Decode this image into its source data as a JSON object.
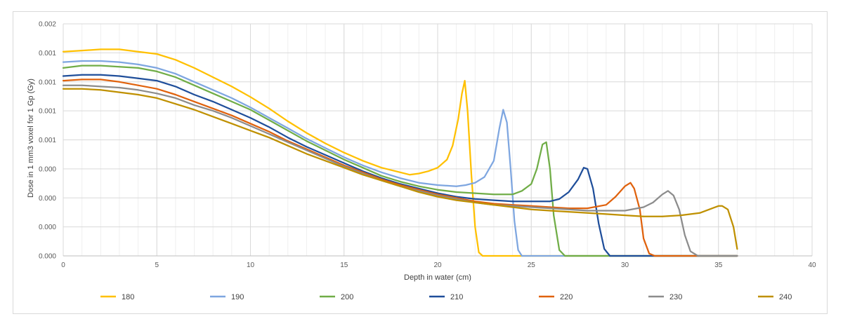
{
  "chart_data": {
    "type": "line",
    "title": "",
    "xlabel": "Depth in water (cm)",
    "ylabel": "Dose in 1 mm3 voxel for 1 Gp (Gy)",
    "xlim": [
      0,
      40
    ],
    "ylim": [
      0,
      0.002
    ],
    "x_ticks": [
      0,
      5,
      10,
      15,
      20,
      25,
      30,
      35,
      40
    ],
    "x_tick_labels": [
      "0",
      "5",
      "10",
      "15",
      "20",
      "25",
      "30",
      "35",
      "40"
    ],
    "y_ticks": [
      0,
      0.00025,
      0.0005,
      0.00075,
      0.001,
      0.00125,
      0.0015,
      0.00175,
      0.002
    ],
    "y_tick_labels": [
      "0.000",
      "0.000",
      "0.000",
      "0.000",
      "0.001",
      "0.001",
      "0.001",
      "0.001",
      "0.002"
    ],
    "grid": true,
    "legend_position": "bottom",
    "series": [
      {
        "name": "180",
        "color": "#FFC000",
        "x": [
          0,
          1,
          2,
          3,
          4,
          5,
          6,
          7,
          8,
          9,
          10,
          11,
          12,
          13,
          14,
          15,
          16,
          17,
          18,
          18.5,
          19,
          19.5,
          20,
          20.5,
          20.8,
          21.1,
          21.3,
          21.45,
          21.6,
          21.8,
          22.0,
          22.2,
          22.4,
          23,
          36
        ],
        "y": [
          0.00176,
          0.00177,
          0.00178,
          0.00178,
          0.00176,
          0.00174,
          0.00169,
          0.00162,
          0.00154,
          0.00146,
          0.00137,
          0.00127,
          0.00116,
          0.00106,
          0.00097,
          0.00089,
          0.00082,
          0.00076,
          0.00072,
          0.0007,
          0.00071,
          0.00073,
          0.00076,
          0.00083,
          0.00095,
          0.00118,
          0.0014,
          0.00151,
          0.00125,
          0.0007,
          0.00025,
          3e-05,
          0,
          0,
          0
        ]
      },
      {
        "name": "190",
        "color": "#7EA6E0",
        "x": [
          0,
          1,
          2,
          3,
          4,
          5,
          6,
          7,
          8,
          9,
          10,
          11,
          12,
          13,
          14,
          15,
          16,
          17,
          18,
          19,
          20,
          21,
          21.5,
          22,
          22.5,
          23,
          23.3,
          23.5,
          23.7,
          23.9,
          24.1,
          24.3,
          24.5,
          25,
          36
        ],
        "y": [
          0.00167,
          0.00168,
          0.00168,
          0.00167,
          0.00165,
          0.00162,
          0.00157,
          0.0015,
          0.00143,
          0.00136,
          0.00128,
          0.00119,
          0.0011,
          0.00101,
          0.00093,
          0.00085,
          0.00078,
          0.00072,
          0.00067,
          0.00063,
          0.00061,
          0.0006,
          0.00061,
          0.00063,
          0.00068,
          0.00082,
          0.0011,
          0.00126,
          0.00115,
          0.00075,
          0.0003,
          5e-05,
          0,
          0,
          0
        ]
      },
      {
        "name": "200",
        "color": "#70AD47",
        "x": [
          0,
          1,
          2,
          3,
          4,
          5,
          6,
          7,
          8,
          9,
          10,
          11,
          12,
          13,
          14,
          15,
          16,
          17,
          18,
          19,
          20,
          21,
          22,
          23,
          24,
          24.5,
          25,
          25.3,
          25.6,
          25.8,
          26.0,
          26.2,
          26.5,
          26.8,
          27,
          36
        ],
        "y": [
          0.00162,
          0.00164,
          0.00164,
          0.00163,
          0.00162,
          0.00159,
          0.00154,
          0.00147,
          0.0014,
          0.00133,
          0.00126,
          0.00117,
          0.00108,
          0.00099,
          0.00091,
          0.00083,
          0.00076,
          0.00069,
          0.00064,
          0.0006,
          0.00057,
          0.00055,
          0.00054,
          0.00053,
          0.00053,
          0.00056,
          0.00062,
          0.00075,
          0.00096,
          0.00098,
          0.00075,
          0.00035,
          5e-05,
          0,
          0,
          0
        ]
      },
      {
        "name": "210",
        "color": "#1F4E9A",
        "x": [
          0,
          1,
          2,
          3,
          4,
          5,
          6,
          7,
          8,
          9,
          10,
          11,
          12,
          13,
          14,
          15,
          16,
          17,
          18,
          19,
          20,
          21,
          22,
          23,
          24,
          25,
          26,
          26.5,
          27,
          27.5,
          27.8,
          28.0,
          28.3,
          28.6,
          28.9,
          29.2,
          36
        ],
        "y": [
          0.00155,
          0.00156,
          0.00156,
          0.00155,
          0.00153,
          0.00151,
          0.00146,
          0.00139,
          0.00133,
          0.00126,
          0.00119,
          0.00111,
          0.00102,
          0.00094,
          0.00087,
          0.0008,
          0.00073,
          0.00067,
          0.00062,
          0.00058,
          0.00054,
          0.00051,
          0.00049,
          0.00048,
          0.00047,
          0.00047,
          0.00047,
          0.00049,
          0.00055,
          0.00066,
          0.00076,
          0.00075,
          0.00058,
          0.00028,
          6e-05,
          0,
          0
        ]
      },
      {
        "name": "220",
        "color": "#E0620D",
        "x": [
          0,
          1,
          2,
          3,
          4,
          5,
          6,
          7,
          8,
          9,
          10,
          11,
          12,
          13,
          14,
          15,
          16,
          17,
          18,
          19,
          20,
          21,
          22,
          23,
          24,
          25,
          26,
          27,
          28,
          29,
          29.5,
          30,
          30.3,
          30.5,
          30.8,
          31.0,
          31.3,
          31.6,
          36
        ],
        "y": [
          0.00151,
          0.00152,
          0.00152,
          0.0015,
          0.00147,
          0.00144,
          0.00139,
          0.00133,
          0.00127,
          0.00121,
          0.00114,
          0.00107,
          0.00099,
          0.00092,
          0.00085,
          0.00078,
          0.00072,
          0.00066,
          0.00061,
          0.00057,
          0.00053,
          0.0005,
          0.00047,
          0.00045,
          0.00044,
          0.00043,
          0.00042,
          0.00041,
          0.00041,
          0.00044,
          0.00051,
          0.0006,
          0.00063,
          0.00058,
          0.0004,
          0.00015,
          2e-05,
          0,
          0
        ]
      },
      {
        "name": "230",
        "color": "#8C8C8C",
        "x": [
          0,
          1,
          2,
          3,
          4,
          5,
          6,
          7,
          8,
          9,
          10,
          11,
          12,
          13,
          14,
          15,
          16,
          17,
          18,
          19,
          20,
          21,
          22,
          23,
          24,
          25,
          26,
          27,
          28,
          29,
          30,
          31,
          31.5,
          32,
          32.3,
          32.6,
          32.9,
          33.2,
          33.5,
          33.9,
          36
        ],
        "y": [
          0.00147,
          0.00147,
          0.00146,
          0.00145,
          0.00143,
          0.0014,
          0.00136,
          0.0013,
          0.00125,
          0.00119,
          0.00112,
          0.00105,
          0.00098,
          0.00091,
          0.00084,
          0.00077,
          0.00071,
          0.00065,
          0.0006,
          0.00056,
          0.00052,
          0.00049,
          0.00046,
          0.00044,
          0.00043,
          0.00042,
          0.00041,
          0.0004,
          0.00039,
          0.00039,
          0.00039,
          0.00042,
          0.00046,
          0.00053,
          0.00056,
          0.00052,
          0.0004,
          0.00018,
          4e-05,
          0,
          0
        ]
      },
      {
        "name": "240",
        "color": "#BF9000",
        "x": [
          0,
          1,
          2,
          3,
          4,
          5,
          6,
          7,
          8,
          9,
          10,
          11,
          12,
          13,
          14,
          15,
          16,
          17,
          18,
          19,
          20,
          21,
          22,
          23,
          24,
          25,
          26,
          27,
          28,
          29,
          30,
          31,
          32,
          33,
          34,
          34.5,
          35,
          35.2,
          35.5,
          35.8,
          36
        ],
        "y": [
          0.00144,
          0.00144,
          0.00143,
          0.00141,
          0.00139,
          0.00136,
          0.00131,
          0.00126,
          0.0012,
          0.00114,
          0.00108,
          0.00102,
          0.00095,
          0.00088,
          0.00082,
          0.00076,
          0.0007,
          0.00065,
          0.0006,
          0.00055,
          0.00051,
          0.00048,
          0.00046,
          0.00044,
          0.00042,
          0.0004,
          0.00039,
          0.00038,
          0.00037,
          0.00036,
          0.00035,
          0.00034,
          0.00034,
          0.00035,
          0.00037,
          0.0004,
          0.00043,
          0.00043,
          0.0004,
          0.00025,
          6e-05
        ]
      }
    ]
  }
}
